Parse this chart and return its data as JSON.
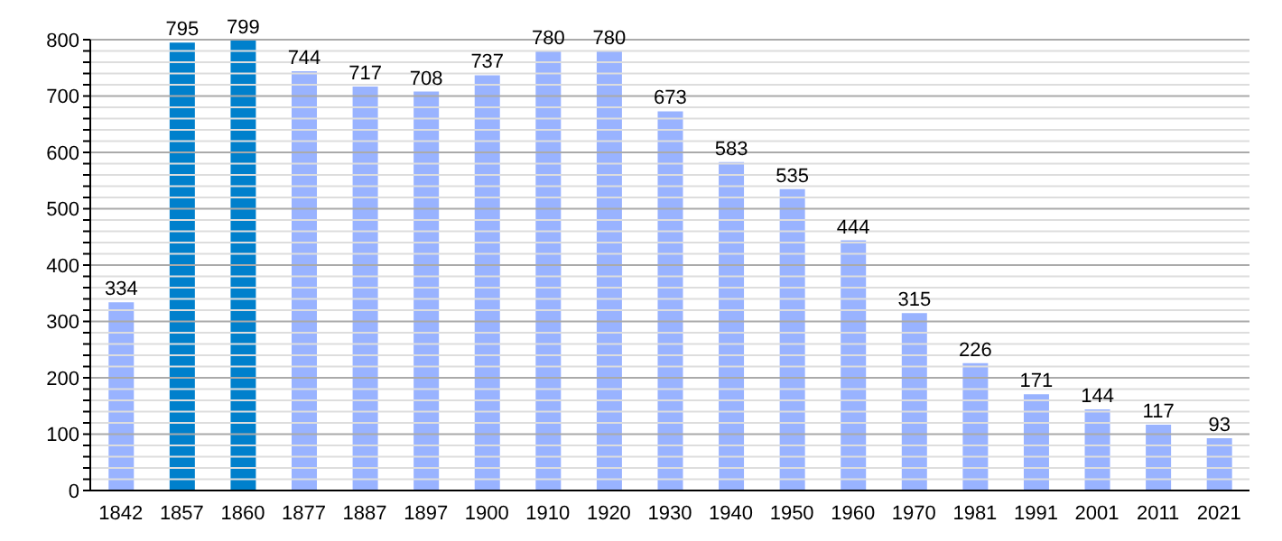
{
  "chart_data": {
    "type": "bar",
    "categories": [
      "1842",
      "1857",
      "1860",
      "1877",
      "1887",
      "1897",
      "1900",
      "1910",
      "1920",
      "1930",
      "1940",
      "1950",
      "1960",
      "1970",
      "1981",
      "1991",
      "2001",
      "2011",
      "2021"
    ],
    "values": [
      334,
      795,
      799,
      744,
      717,
      708,
      737,
      780,
      780,
      673,
      583,
      535,
      444,
      315,
      226,
      171,
      144,
      117,
      93
    ],
    "colors": [
      "#99b3ff",
      "#0080cc",
      "#0080cc",
      "#99b3ff",
      "#99b3ff",
      "#99b3ff",
      "#99b3ff",
      "#99b3ff",
      "#99b3ff",
      "#99b3ff",
      "#99b3ff",
      "#99b3ff",
      "#99b3ff",
      "#99b3ff",
      "#99b3ff",
      "#99b3ff",
      "#99b3ff",
      "#99b3ff",
      "#99b3ff"
    ],
    "ylim": [
      0,
      800
    ],
    "yticks": [
      0,
      {
        "value": 20,
        "label": null
      },
      {
        "value": 40,
        "label": null
      },
      {
        "value": 60,
        "label": null
      },
      {
        "value": 80,
        "label": null
      },
      100,
      {
        "value": 120,
        "label": null
      },
      {
        "value": 140,
        "label": null
      },
      {
        "value": 160,
        "label": null
      },
      {
        "value": 180,
        "label": null
      },
      200,
      {
        "value": 220,
        "label": null
      },
      {
        "value": 240,
        "label": null
      },
      {
        "value": 260,
        "label": null
      },
      {
        "value": 280,
        "label": null
      },
      300,
      {
        "value": 320,
        "label": null
      },
      {
        "value": 340,
        "label": null
      },
      {
        "value": 360,
        "label": null
      },
      {
        "value": 380,
        "label": null
      },
      400,
      {
        "value": 420,
        "label": null
      },
      {
        "value": 440,
        "label": null
      },
      {
        "value": 460,
        "label": null
      },
      {
        "value": 480,
        "label": null
      },
      500,
      {
        "value": 520,
        "label": null
      },
      {
        "value": 540,
        "label": null
      },
      {
        "value": 560,
        "label": null
      },
      {
        "value": 580,
        "label": null
      },
      600,
      {
        "value": 620,
        "label": null
      },
      {
        "value": 640,
        "label": null
      },
      {
        "value": 660,
        "label": null
      },
      {
        "value": 680,
        "label": null
      },
      700,
      {
        "value": 720,
        "label": null
      },
      {
        "value": 740,
        "label": null
      },
      {
        "value": 760,
        "label": null
      },
      {
        "value": 780,
        "label": null
      },
      800
    ],
    "grid": "y",
    "data_labels": true
  }
}
